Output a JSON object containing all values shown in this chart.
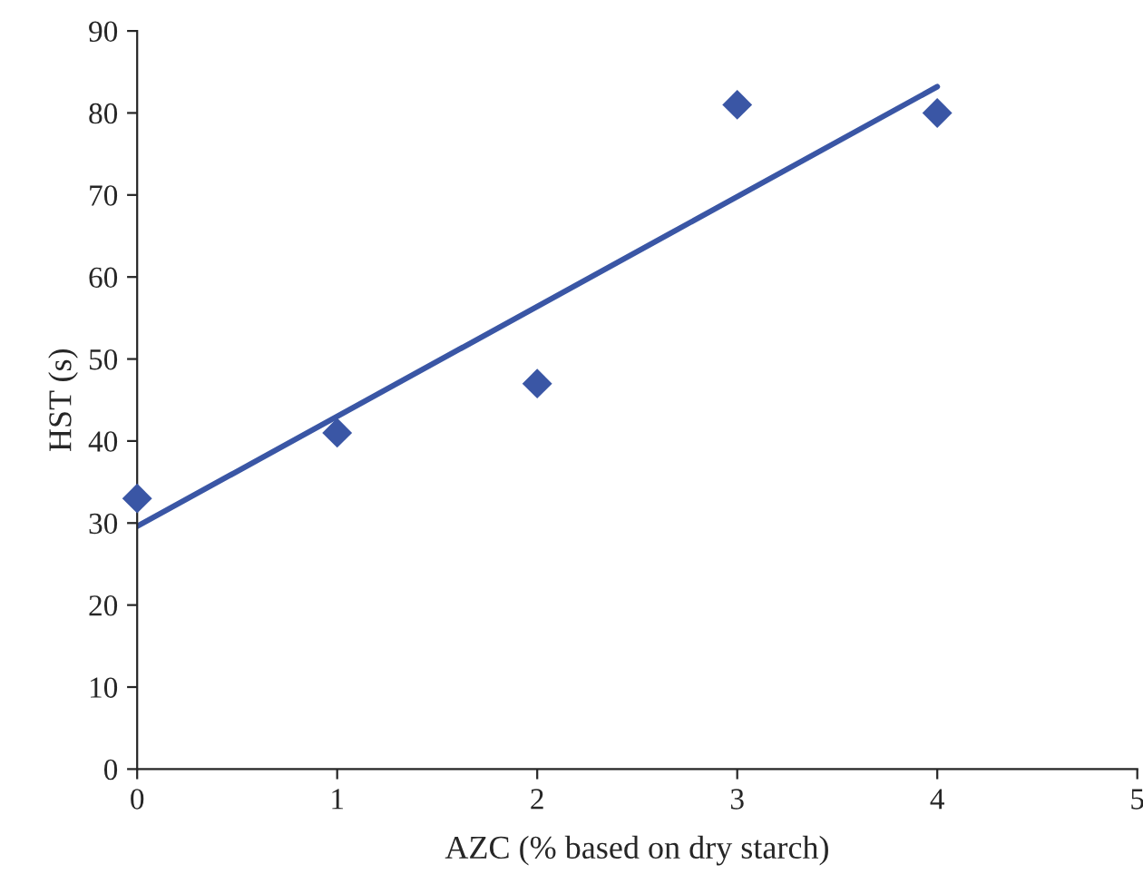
{
  "chart_data": {
    "type": "scatter",
    "xlabel": "AZC (% based on dry starch)",
    "ylabel": "HST (s)",
    "xlim": [
      0,
      5
    ],
    "xticks": [
      0,
      1,
      2,
      3,
      4,
      5
    ],
    "ylim": [
      0,
      90
    ],
    "yticks": [
      0,
      10,
      20,
      30,
      40,
      50,
      60,
      70,
      80,
      90
    ],
    "grid": false,
    "legend": false,
    "series": [
      {
        "marker": "diamond",
        "color": "#3a56a5",
        "x": [
          0,
          1,
          2,
          3,
          4
        ],
        "values": [
          33,
          41,
          47,
          81,
          80
        ]
      },
      {
        "type": "line",
        "marker": "none",
        "line_style": "solid",
        "color": "#3a56a5",
        "x": [
          0,
          4
        ],
        "values": [
          29.6,
          83.2
        ]
      }
    ]
  }
}
